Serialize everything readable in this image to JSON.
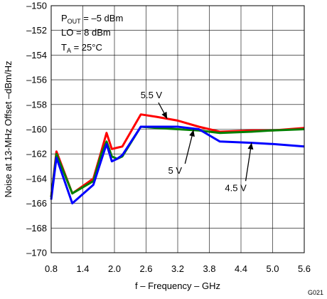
{
  "figure_id": "G021",
  "chart_data": {
    "type": "line",
    "xlabel": "f – Frequency – GHz",
    "ylabel": "Noise at 13-MHz Offset –dBm/Hz",
    "xlim": [
      0.8,
      5.6
    ],
    "ylim": [
      -170,
      -150
    ],
    "x_ticks": [
      "0.8",
      "1.4",
      "2.0",
      "2.6",
      "3.2",
      "3.8",
      "4.4",
      "5.0",
      "5.6"
    ],
    "y_ticks": [
      "–150",
      "–152",
      "–154",
      "–156",
      "–158",
      "–160",
      "–162",
      "–164",
      "–166",
      "–168",
      "–170"
    ],
    "grid": true,
    "conditions": {
      "pout_main": "P",
      "pout_sub": "OUT",
      "pout_rest": " =  –5 dBm",
      "lo": "LO = 8 dBm",
      "ta_main": "T",
      "ta_sub": "A",
      "ta_rest": " = 25°C"
    },
    "series": [
      {
        "name": "5.5 V",
        "color": "#ff0000",
        "x": [
          0.8,
          0.9,
          1.2,
          1.6,
          1.75,
          1.85,
          1.95,
          2.05,
          2.15,
          2.5,
          2.8,
          3.2,
          3.6,
          4.0,
          4.6,
          5.0,
          5.6
        ],
        "y": [
          -165.5,
          -161.8,
          -165.2,
          -164.0,
          -161.8,
          -160.3,
          -161.6,
          -161.5,
          -161.4,
          -158.8,
          -159.0,
          -159.3,
          -159.8,
          -160.2,
          -160.1,
          -160.1,
          -159.9
        ]
      },
      {
        "name": "5 V",
        "color": "#008000",
        "x": [
          0.8,
          0.9,
          1.2,
          1.6,
          1.75,
          1.85,
          1.95,
          2.05,
          2.15,
          2.5,
          2.8,
          3.2,
          3.6,
          4.0,
          4.6,
          5.0,
          5.6
        ],
        "y": [
          -165.5,
          -162.0,
          -165.2,
          -164.2,
          -162.0,
          -161.0,
          -162.2,
          -162.4,
          -162.2,
          -159.8,
          -159.9,
          -160.0,
          -160.1,
          -160.3,
          -160.2,
          -160.1,
          -160.0
        ]
      },
      {
        "name": "4.5 V",
        "color": "#0000ff",
        "x": [
          0.8,
          0.9,
          1.2,
          1.6,
          1.75,
          1.85,
          1.95,
          2.05,
          2.15,
          2.5,
          2.8,
          3.2,
          3.6,
          4.0,
          4.6,
          5.0,
          5.6
        ],
        "y": [
          -165.7,
          -162.3,
          -166.0,
          -164.5,
          -162.5,
          -161.2,
          -162.6,
          -162.4,
          -162.1,
          -159.8,
          -159.8,
          -159.8,
          -160.0,
          -161.0,
          -161.1,
          -161.2,
          -161.4
        ]
      }
    ],
    "annotations": [
      {
        "text": "5.5 V",
        "series": "5.5 V",
        "label_at": [
          2.7,
          -157.5
        ],
        "arrow_to": [
          3.0,
          -159.15
        ]
      },
      {
        "text": "5 V",
        "series": "5 V",
        "label_at": [
          3.15,
          -163.6
        ],
        "arrow_to": [
          3.5,
          -160.05
        ]
      },
      {
        "text": "4.5 V",
        "series": "4.5 V",
        "label_at": [
          4.3,
          -165.0
        ],
        "arrow_to": [
          4.6,
          -161.1
        ]
      }
    ]
  }
}
